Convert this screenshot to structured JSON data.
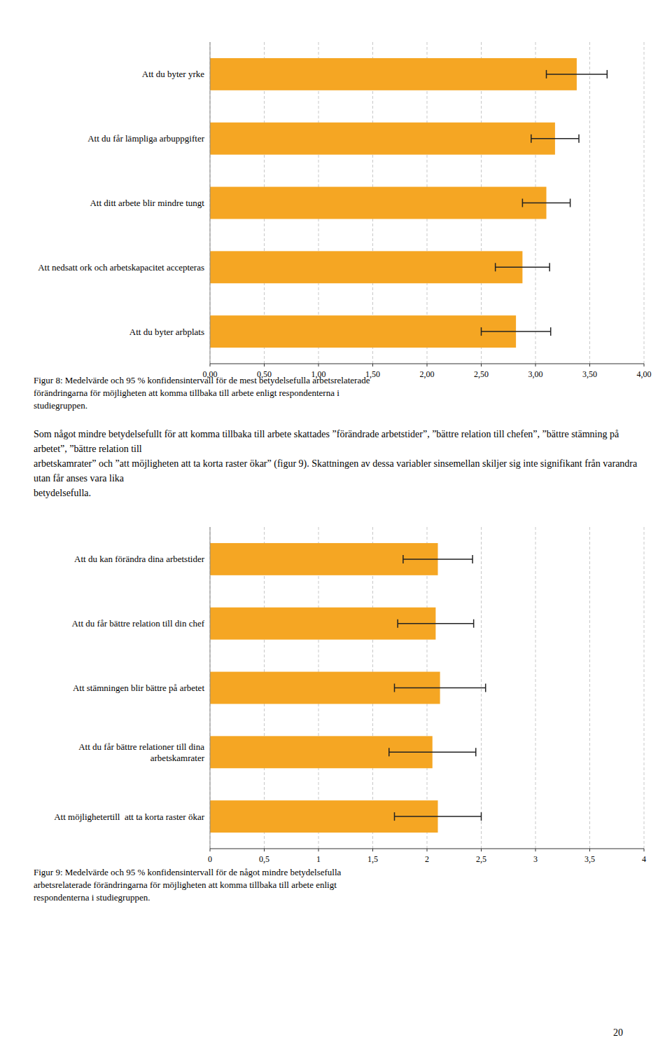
{
  "chart_data": [
    {
      "type": "bar",
      "orientation": "horizontal",
      "grid": true,
      "color": "#f5a623",
      "categories": [
        "Att du byter yrke",
        "Att du får lämpliga arbuppgifter",
        "Att ditt arbete blir mindre tungt",
        "Att nedsatt ork och arbetskapacitet accepteras",
        "Att du byter arbplats"
      ],
      "values": [
        3.38,
        3.18,
        3.1,
        2.88,
        2.82
      ],
      "errors": [
        0.28,
        0.22,
        0.22,
        0.25,
        0.32
      ],
      "xlim": [
        0,
        4.0
      ],
      "xticks": [
        {
          "value": 0.0,
          "label": "0,00"
        },
        {
          "value": 0.5,
          "label": "0,50"
        },
        {
          "value": 1.0,
          "label": "1,00"
        },
        {
          "value": 1.5,
          "label": "1,50"
        },
        {
          "value": 2.0,
          "label": "2,00"
        },
        {
          "value": 2.5,
          "label": "2,50"
        },
        {
          "value": 3.0,
          "label": "3,00"
        },
        {
          "value": 3.5,
          "label": "3,50"
        },
        {
          "value": 4.0,
          "label": "4,00"
        }
      ],
      "annotations": [
        "Figur 8: Medelvärde och 95 % konfidensintervall för de mest betydelsefulla arbetsrelaterade",
        "förändringarna för möjligheten att komma tillbaka till arbete enligt respondenterna i",
        "studiegruppen."
      ]
    },
    {
      "type": "bar",
      "orientation": "horizontal",
      "grid": true,
      "color": "#f5a623",
      "categories": [
        "Att du kan förändra dina arbetstider",
        "Att du får bättre relation till din chef",
        "Att stämningen blir bättre på arbetet",
        "Att du får bättre relationer till dina\narbetskamrater",
        "Att möjlighetertill  att ta korta raster ökar"
      ],
      "values": [
        2.1,
        2.08,
        2.12,
        2.05,
        2.1
      ],
      "errors": [
        0.32,
        0.35,
        0.42,
        0.4,
        0.4
      ],
      "xlim": [
        0,
        4.0
      ],
      "xticks": [
        0,
        {
          "value": 0.5,
          "label": "0,5"
        },
        1,
        {
          "value": 1.5,
          "label": "1,5"
        },
        2,
        {
          "value": 2.5,
          "label": "2,5"
        },
        3,
        {
          "value": 3.5,
          "label": "3,5"
        },
        4
      ],
      "annotations": [
        "Figur 9: Medelvärde och 95 % konfidensintervall för de något mindre betydelsefulla",
        "arbetsrelaterade förändringarna för möjligheten att komma tillbaka till arbete enligt",
        "respondenterna i studiegruppen."
      ]
    }
  ],
  "text_block": [
    "Som något mindre betydelsefullt för att komma tillbaka till arbete skattades ”förändrade arbetstider”, ”bättre relation till chefen”, ”bättre stämning på arbetet”, ”bättre relation till",
    "arbetskamrater” och ”att möjligheten att ta korta raster ökar” (figur 9). Skattningen av dessa variabler sinsemellan skiljer sig inte signifikant från varandra utan får anses vara lika",
    "betydelsefulla."
  ],
  "page_number": "20"
}
